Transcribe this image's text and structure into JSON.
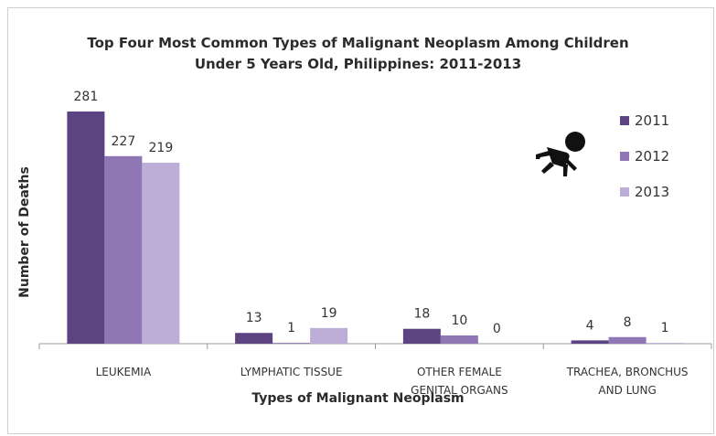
{
  "chart_data": {
    "type": "bar",
    "title": "Top Four Most Common Types of Malignant Neoplasm Among Children",
    "subtitle": "Under 5 Years Old, Philippines: 2011-2013",
    "xlabel": "Types of Malignant Neoplasm",
    "ylabel": "Number of Deaths",
    "categories": [
      [
        "LEUKEMIA"
      ],
      [
        "LYMPHATIC TISSUE"
      ],
      [
        "OTHER FEMALE",
        "GENITAL ORGANS"
      ],
      [
        "TRACHEA, BRONCHUS",
        "AND LUNG"
      ]
    ],
    "series": [
      {
        "name": "2011",
        "color": "#5b4481",
        "values": [
          281,
          13,
          18,
          4
        ]
      },
      {
        "name": "2012",
        "color": "#8f77b5",
        "values": [
          227,
          1,
          10,
          8
        ]
      },
      {
        "name": "2013",
        "color": "#bcaed6",
        "values": [
          219,
          19,
          0,
          1
        ]
      }
    ],
    "ylim": [
      0,
      281
    ],
    "legend_position": "right",
    "grid": false
  },
  "decorations": {
    "icon": "crawling-baby-icon"
  }
}
